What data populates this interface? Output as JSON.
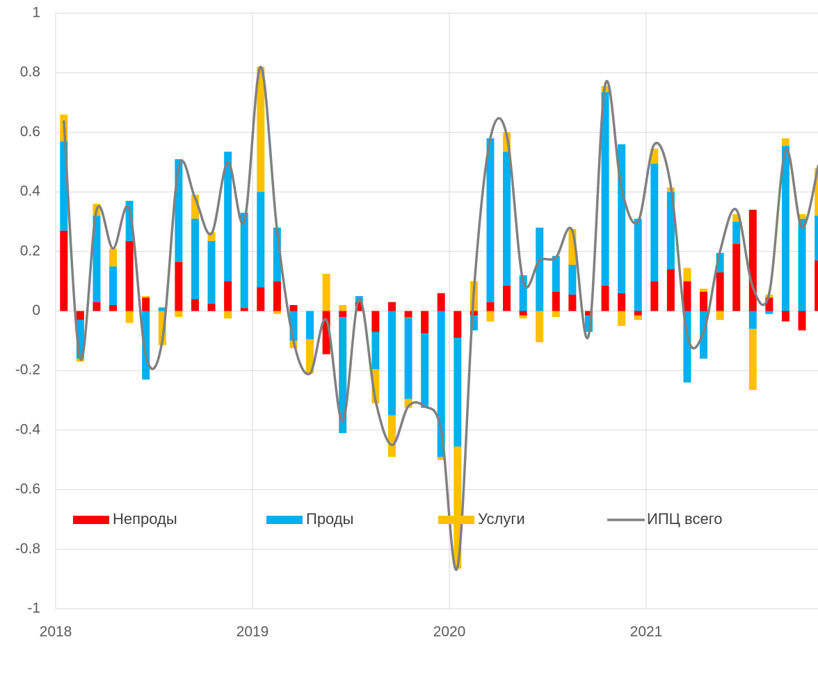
{
  "chart_data": {
    "type": "bar",
    "categories": [
      "2018",
      null,
      null,
      null,
      null,
      null,
      null,
      null,
      null,
      null,
      null,
      null,
      "2019",
      null,
      null,
      null,
      null,
      null,
      null,
      null,
      null,
      null,
      null,
      null,
      "2020",
      null,
      null,
      null,
      null,
      null,
      null,
      null,
      null,
      null,
      null,
      null,
      "2021",
      null,
      null,
      null,
      null,
      null,
      null,
      null,
      null,
      null,
      null
    ],
    "series": [
      {
        "name": "Непроды",
        "color": "#ff0000",
        "values": [
          0.27,
          -0.03,
          0.03,
          0.02,
          0.235,
          0.045,
          0.0,
          0.165,
          0.04,
          0.025,
          0.1,
          0.01,
          0.08,
          0.1,
          0.02,
          0.0,
          -0.145,
          -0.02,
          0.03,
          -0.07,
          0.03,
          -0.02,
          -0.075,
          0.06,
          -0.09,
          -0.015,
          0.03,
          0.085,
          -0.015,
          0.0,
          0.065,
          0.055,
          -0.015,
          0.085,
          0.06,
          -0.015,
          0.1,
          0.14,
          0.1,
          0.065,
          0.13,
          0.225,
          0.34,
          0.045,
          -0.035,
          -0.065,
          0.17
        ]
      },
      {
        "name": "Проды",
        "color": "#00b0f0",
        "values": [
          0.3,
          -0.13,
          0.29,
          0.13,
          0.135,
          -0.23,
          0.012,
          0.345,
          0.27,
          0.21,
          0.435,
          0.32,
          0.32,
          0.18,
          -0.1,
          -0.095,
          0.0,
          -0.39,
          0.02,
          -0.125,
          -0.35,
          -0.275,
          -0.25,
          -0.49,
          -0.365,
          -0.05,
          0.55,
          0.45,
          0.12,
          0.28,
          0.12,
          0.1,
          -0.055,
          0.65,
          0.5,
          0.31,
          0.395,
          0.26,
          -0.24,
          -0.16,
          0.065,
          0.075,
          -0.06,
          -0.01,
          0.555,
          0.31,
          0.15
        ]
      },
      {
        "name": "Услуги",
        "color": "#ffc000",
        "values": [
          0.09,
          -0.01,
          0.04,
          0.06,
          -0.04,
          0.005,
          -0.115,
          -0.02,
          0.08,
          0.03,
          -0.025,
          0.0,
          0.42,
          -0.01,
          -0.025,
          -0.115,
          0.125,
          0.02,
          0.0,
          -0.115,
          -0.14,
          -0.03,
          0.0,
          -0.01,
          -0.41,
          0.1,
          -0.035,
          0.065,
          -0.01,
          -0.105,
          -0.02,
          0.12,
          0.0,
          0.02,
          -0.05,
          -0.015,
          0.05,
          0.015,
          0.045,
          0.01,
          -0.03,
          0.025,
          -0.205,
          0.01,
          0.025,
          0.015,
          0.16
        ]
      },
      {
        "name": "ИПЦ всего",
        "color": "#808080",
        "line": true,
        "values": [
          0.64,
          -0.16,
          0.34,
          0.21,
          0.34,
          -0.15,
          -0.1,
          0.48,
          0.38,
          0.26,
          0.5,
          0.3,
          0.82,
          0.27,
          -0.1,
          -0.21,
          -0.03,
          -0.37,
          0.04,
          -0.3,
          -0.45,
          -0.32,
          -0.32,
          -0.4,
          -0.86,
          0.07,
          0.58,
          0.59,
          0.1,
          0.17,
          0.18,
          0.27,
          -0.08,
          0.76,
          0.41,
          0.3,
          0.56,
          0.42,
          -0.08,
          -0.07,
          0.2,
          0.34,
          0.08,
          0.06,
          0.54,
          0.28,
          0.49
        ]
      }
    ],
    "ylim": [
      -1,
      1
    ],
    "yticks": [
      -1,
      -0.8,
      -0.6,
      -0.4,
      -0.2,
      0,
      0.2,
      0.4,
      0.6,
      0.8,
      1
    ],
    "grid": true,
    "legend": "bottom"
  }
}
